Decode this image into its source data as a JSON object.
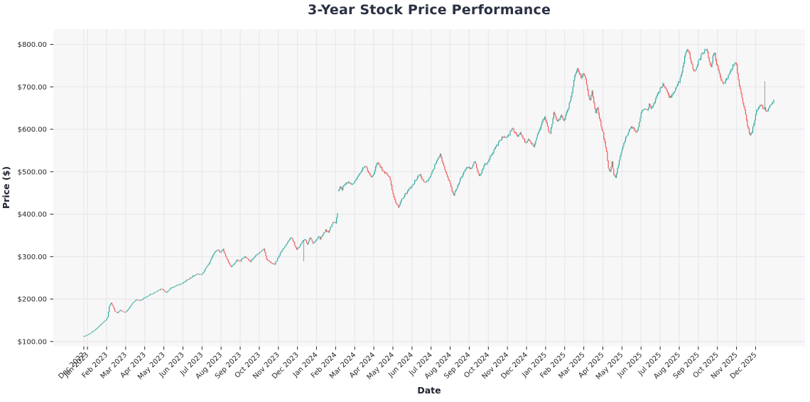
{
  "chart_data": {
    "type": "candlestick",
    "title": "3-Year Stock Price Performance",
    "xlabel": "Date",
    "ylabel": "Price ($)",
    "grid": true,
    "legend": null,
    "ylim": [
      88,
      836
    ],
    "y_ticks": [
      {
        "value": 100,
        "label": "$100.00"
      },
      {
        "value": 200,
        "label": "$200.00"
      },
      {
        "value": 300,
        "label": "$300.00"
      },
      {
        "value": 400,
        "label": "$400.00"
      },
      {
        "value": 500,
        "label": "$500.00"
      },
      {
        "value": 600,
        "label": "$600.00"
      },
      {
        "value": 700,
        "label": "$700.00"
      },
      {
        "value": 800,
        "label": "$800.00"
      }
    ],
    "x_tick_labels": [
      "Dec 2022",
      "Jan 2023",
      "Feb 2023",
      "Mar 2023",
      "Apr 2023",
      "May 2023",
      "Jun 2023",
      "Jul 2023",
      "Aug 2023",
      "Sep 2023",
      "Oct 2023",
      "Nov 2023",
      "Dec 2023",
      "Jan 2024",
      "Feb 2024",
      "Mar 2024",
      "Apr 2024",
      "May 2024",
      "Jun 2024",
      "Jul 2024",
      "Aug 2024",
      "Sep 2024",
      "Oct 2024",
      "Nov 2024",
      "Dec 2024",
      "Jan 2025",
      "Feb 2025",
      "Mar 2025",
      "Apr 2025",
      "May 2025",
      "Jun 2025",
      "Jul 2025",
      "Aug 2025",
      "Sep 2025",
      "Oct 2025",
      "Nov 2025",
      "Dec 2025"
    ],
    "x_axis": {
      "trading_days": 760,
      "days_before_first_month_tick": 4,
      "days_per_month": 21
    },
    "colors": {
      "up": "#26a69a",
      "down": "#ef5350",
      "wick_special": "#555555",
      "grid": "#e9e9eb",
      "plot_bg": "#f7f7f8",
      "figure_bg": "#ffffff",
      "title_text": "#2b3144",
      "axis_text": "#262626",
      "axis_title_text": "#1f232e"
    },
    "noise_seed": 42,
    "gap_threshold": 40,
    "special_wicks": [
      {
        "day": 749,
        "high": 713
      },
      {
        "day": 242,
        "low": 289
      }
    ],
    "price_path_keypoints": [
      [
        0,
        112
      ],
      [
        3,
        115
      ],
      [
        6,
        118
      ],
      [
        9,
        123
      ],
      [
        12,
        127
      ],
      [
        15,
        133
      ],
      [
        18,
        139
      ],
      [
        21,
        145
      ],
      [
        24,
        150
      ],
      [
        26,
        157
      ],
      [
        28,
        183
      ],
      [
        30,
        191
      ],
      [
        32,
        182
      ],
      [
        34,
        172
      ],
      [
        37,
        167
      ],
      [
        40,
        174
      ],
      [
        43,
        170
      ],
      [
        46,
        169
      ],
      [
        49,
        177
      ],
      [
        52,
        186
      ],
      [
        55,
        194
      ],
      [
        58,
        199
      ],
      [
        61,
        196
      ],
      [
        64,
        199
      ],
      [
        67,
        203
      ],
      [
        70,
        207
      ],
      [
        73,
        211
      ],
      [
        76,
        213
      ],
      [
        79,
        217
      ],
      [
        82,
        221
      ],
      [
        85,
        224
      ],
      [
        88,
        221
      ],
      [
        90,
        215
      ],
      [
        93,
        220
      ],
      [
        96,
        226
      ],
      [
        99,
        229
      ],
      [
        102,
        232
      ],
      [
        105,
        234
      ],
      [
        108,
        236
      ],
      [
        111,
        241
      ],
      [
        114,
        246
      ],
      [
        117,
        250
      ],
      [
        120,
        254
      ],
      [
        123,
        257
      ],
      [
        126,
        260
      ],
      [
        129,
        258
      ],
      [
        130,
        258
      ],
      [
        134,
        272
      ],
      [
        138,
        285
      ],
      [
        141,
        300
      ],
      [
        144,
        312
      ],
      [
        147,
        316
      ],
      [
        150,
        310
      ],
      [
        153,
        318
      ],
      [
        156,
        300
      ],
      [
        159,
        288
      ],
      [
        162,
        276
      ],
      [
        165,
        282
      ],
      [
        168,
        292
      ],
      [
        171,
        288
      ],
      [
        174,
        295
      ],
      [
        177,
        300
      ],
      [
        180,
        294
      ],
      [
        183,
        288
      ],
      [
        186,
        296
      ],
      [
        189,
        302
      ],
      [
        192,
        308
      ],
      [
        195,
        312
      ],
      [
        198,
        318
      ],
      [
        201,
        295
      ],
      [
        204,
        288
      ],
      [
        207,
        284
      ],
      [
        210,
        282
      ],
      [
        213,
        295
      ],
      [
        216,
        308
      ],
      [
        219,
        318
      ],
      [
        222,
        328
      ],
      [
        225,
        338
      ],
      [
        228,
        345
      ],
      [
        231,
        332
      ],
      [
        234,
        318
      ],
      [
        237,
        322
      ],
      [
        240,
        335
      ],
      [
        243,
        340
      ],
      [
        246,
        330
      ],
      [
        249,
        345
      ],
      [
        252,
        330
      ],
      [
        255,
        338
      ],
      [
        258,
        348
      ],
      [
        260,
        342
      ],
      [
        263,
        352
      ],
      [
        266,
        362
      ],
      [
        269,
        358
      ],
      [
        272,
        372
      ],
      [
        275,
        382
      ],
      [
        277,
        378
      ],
      [
        278,
        390
      ],
      [
        279,
        402
      ],
      [
        280,
        456
      ],
      [
        282,
        465
      ],
      [
        284,
        459
      ],
      [
        286,
        468
      ],
      [
        288,
        473
      ],
      [
        291,
        477
      ],
      [
        294,
        469
      ],
      [
        296,
        474
      ],
      [
        298,
        477
      ],
      [
        301,
        487
      ],
      [
        304,
        497
      ],
      [
        307,
        507
      ],
      [
        310,
        513
      ],
      [
        313,
        499
      ],
      [
        316,
        487
      ],
      [
        319,
        494
      ],
      [
        321,
        510
      ],
      [
        323,
        523
      ],
      [
        325,
        517
      ],
      [
        327,
        509
      ],
      [
        330,
        500
      ],
      [
        333,
        494
      ],
      [
        336,
        487
      ],
      [
        338,
        470
      ],
      [
        340,
        449
      ],
      [
        343,
        428
      ],
      [
        346,
        417
      ],
      [
        349,
        431
      ],
      [
        352,
        441
      ],
      [
        355,
        451
      ],
      [
        358,
        459
      ],
      [
        361,
        467
      ],
      [
        364,
        477
      ],
      [
        367,
        487
      ],
      [
        370,
        494
      ],
      [
        372,
        483
      ],
      [
        375,
        473
      ],
      [
        378,
        480
      ],
      [
        381,
        489
      ],
      [
        384,
        503
      ],
      [
        387,
        521
      ],
      [
        390,
        536
      ],
      [
        392,
        540
      ],
      [
        394,
        526
      ],
      [
        397,
        505
      ],
      [
        400,
        489
      ],
      [
        403,
        471
      ],
      [
        405,
        454
      ],
      [
        407,
        445
      ],
      [
        410,
        461
      ],
      [
        413,
        477
      ],
      [
        416,
        491
      ],
      [
        419,
        504
      ],
      [
        422,
        511
      ],
      [
        425,
        507
      ],
      [
        428,
        516
      ],
      [
        430,
        524
      ],
      [
        433,
        503
      ],
      [
        435,
        489
      ],
      [
        438,
        503
      ],
      [
        441,
        517
      ],
      [
        444,
        521
      ],
      [
        447,
        536
      ],
      [
        450,
        547
      ],
      [
        453,
        557
      ],
      [
        456,
        567
      ],
      [
        459,
        577
      ],
      [
        462,
        584
      ],
      [
        465,
        579
      ],
      [
        468,
        589
      ],
      [
        471,
        601
      ],
      [
        474,
        593
      ],
      [
        477,
        584
      ],
      [
        480,
        594
      ],
      [
        483,
        579
      ],
      [
        486,
        569
      ],
      [
        489,
        577
      ],
      [
        492,
        566
      ],
      [
        495,
        561
      ],
      [
        498,
        579
      ],
      [
        501,
        599
      ],
      [
        504,
        617
      ],
      [
        507,
        629
      ],
      [
        509,
        618
      ],
      [
        511,
        596
      ],
      [
        513,
        591
      ],
      [
        515,
        615
      ],
      [
        517,
        641
      ],
      [
        519,
        628
      ],
      [
        521,
        616
      ],
      [
        523,
        625
      ],
      [
        525,
        631
      ],
      [
        527,
        622
      ],
      [
        529,
        626
      ],
      [
        531,
        640
      ],
      [
        533,
        652
      ],
      [
        535,
        668
      ],
      [
        537,
        690
      ],
      [
        539,
        716
      ],
      [
        541,
        734
      ],
      [
        543,
        744
      ],
      [
        545,
        731
      ],
      [
        547,
        721
      ],
      [
        549,
        734
      ],
      [
        551,
        727
      ],
      [
        553,
        703
      ],
      [
        555,
        679
      ],
      [
        557,
        667
      ],
      [
        559,
        689
      ],
      [
        561,
        661
      ],
      [
        563,
        639
      ],
      [
        565,
        651
      ],
      [
        567,
        627
      ],
      [
        569,
        609
      ],
      [
        571,
        591
      ],
      [
        573,
        569
      ],
      [
        575,
        547
      ],
      [
        577,
        509
      ],
      [
        579,
        499
      ],
      [
        581,
        524
      ],
      [
        583,
        494
      ],
      [
        585,
        487
      ],
      [
        587,
        507
      ],
      [
        589,
        527
      ],
      [
        591,
        547
      ],
      [
        593,
        561
      ],
      [
        596,
        579
      ],
      [
        599,
        594
      ],
      [
        602,
        607
      ],
      [
        605,
        599
      ],
      [
        608,
        591
      ],
      [
        611,
        614
      ],
      [
        613,
        637
      ],
      [
        616,
        649
      ],
      [
        619,
        644
      ],
      [
        622,
        657
      ],
      [
        625,
        649
      ],
      [
        628,
        667
      ],
      [
        631,
        681
      ],
      [
        634,
        694
      ],
      [
        637,
        707
      ],
      [
        640,
        697
      ],
      [
        643,
        679
      ],
      [
        646,
        674
      ],
      [
        649,
        687
      ],
      [
        652,
        699
      ],
      [
        655,
        714
      ],
      [
        658,
        734
      ],
      [
        661,
        771
      ],
      [
        664,
        789
      ],
      [
        666,
        779
      ],
      [
        668,
        757
      ],
      [
        670,
        744
      ],
      [
        672,
        737
      ],
      [
        674,
        749
      ],
      [
        676,
        761
      ],
      [
        678,
        769
      ],
      [
        680,
        777
      ],
      [
        682,
        784
      ],
      [
        684,
        789
      ],
      [
        686,
        781
      ],
      [
        688,
        759
      ],
      [
        690,
        747
      ],
      [
        692,
        771
      ],
      [
        694,
        779
      ],
      [
        696,
        754
      ],
      [
        698,
        737
      ],
      [
        700,
        724
      ],
      [
        702,
        711
      ],
      [
        704,
        707
      ],
      [
        706,
        715
      ],
      [
        708,
        721
      ],
      [
        710,
        729
      ],
      [
        712,
        741
      ],
      [
        714,
        749
      ],
      [
        716,
        754
      ],
      [
        718,
        751
      ],
      [
        720,
        718
      ],
      [
        722,
        694
      ],
      [
        724,
        672
      ],
      [
        726,
        655
      ],
      [
        728,
        637
      ],
      [
        730,
        610
      ],
      [
        732,
        592
      ],
      [
        733,
        586
      ],
      [
        735,
        594
      ],
      [
        737,
        611
      ],
      [
        739,
        637
      ],
      [
        741,
        647
      ],
      [
        743,
        654
      ],
      [
        745,
        659
      ],
      [
        747,
        651
      ],
      [
        749,
        649
      ],
      [
        751,
        642
      ],
      [
        753,
        649
      ],
      [
        755,
        657
      ],
      [
        757,
        662
      ],
      [
        759,
        667
      ]
    ]
  }
}
